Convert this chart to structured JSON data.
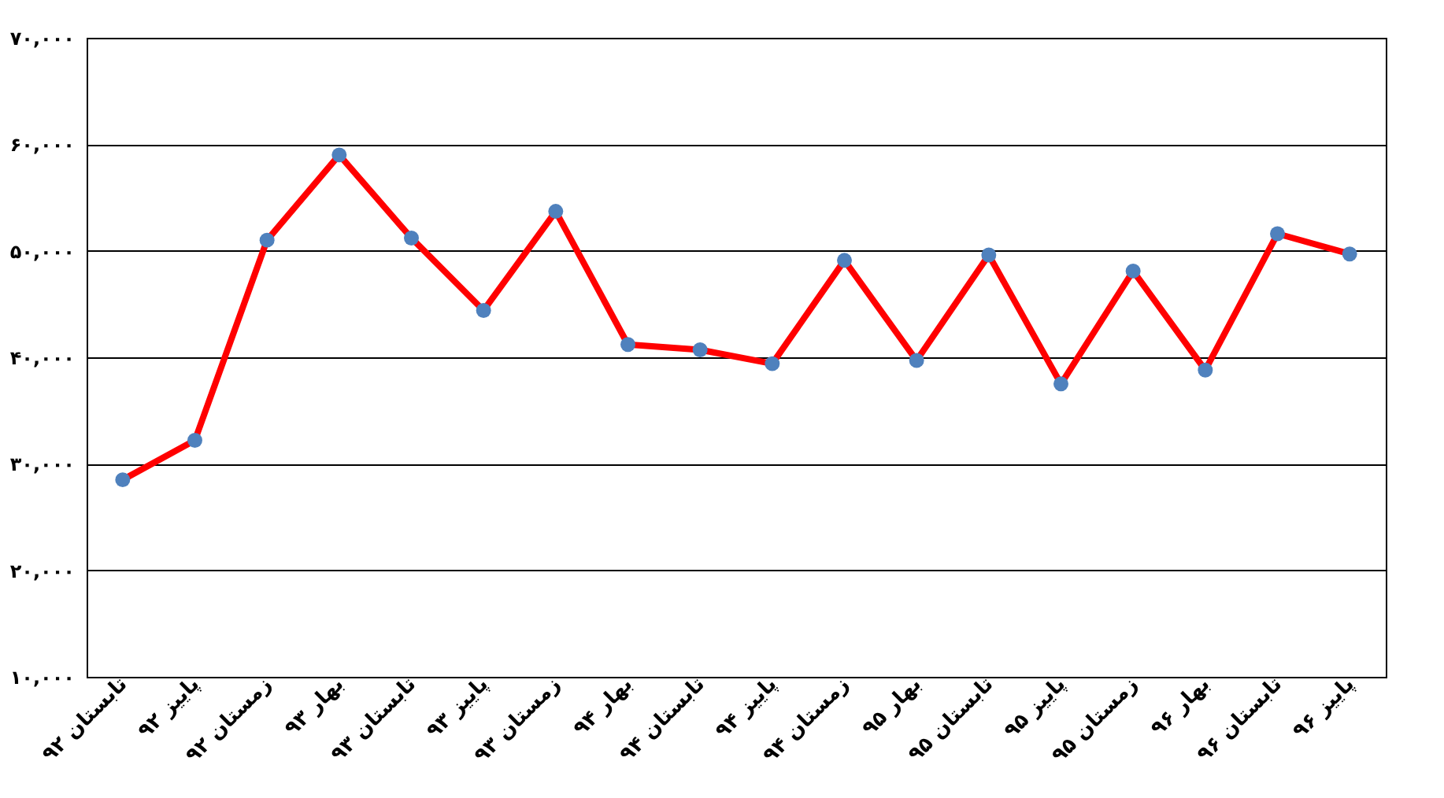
{
  "chart_data": {
    "type": "line",
    "categories": [
      "تابستان ۹۲",
      "پاییز ۹۲",
      "زمستان ۹۲",
      "بهار ۹۳",
      "تابستان ۹۳",
      "پاییز ۹۳",
      "زمستان ۹۳",
      "بهار ۹۴",
      "تابستان ۹۴",
      "پاییز ۹۴",
      "زمستان ۹۴",
      "بهار ۹۵",
      "تابستان ۹۵",
      "پاییز ۹۵",
      "زمستان ۹۵",
      "بهار ۹۶",
      "تابستان ۹۶",
      "پاییز ۹۶"
    ],
    "series": [
      {
        "color": "#ff0000",
        "colors": [
          "#4f81bd",
          "#4f81bd",
          "#4f81bd",
          "#4f81bd",
          "#4f81bd",
          "#4f81bd",
          "#4f81bd",
          "#4f81bd",
          "#4f81bd",
          "#4f81bd",
          "#4f81bd",
          "#4f81bd",
          "#4f81bd",
          "#4f81bd",
          "#4f81bd",
          "#4f81bd",
          "#4f81bd",
          "#4f81bd"
        ],
        "values": [
          28500,
          32200,
          51000,
          59000,
          51200,
          44400,
          53700,
          41200,
          40700,
          39400,
          49100,
          39700,
          49600,
          37500,
          48100,
          38800,
          51600,
          49700
        ]
      }
    ],
    "ylim": [
      10000,
      70000
    ],
    "yticks": [
      {
        "value": 10000,
        "label": "۱۰,۰۰۰"
      },
      {
        "value": 20000,
        "label": "۲۰,۰۰۰"
      },
      {
        "value": 30000,
        "label": "۳۰,۰۰۰"
      },
      {
        "value": 40000,
        "label": "۴۰,۰۰۰"
      },
      {
        "value": 50000,
        "label": "۵۰,۰۰۰"
      },
      {
        "value": 60000,
        "label": "۶۰,۰۰۰"
      },
      {
        "value": 70000,
        "label": "۷۰,۰۰۰"
      }
    ],
    "grid": "y",
    "marker": "circle",
    "line_style": "solid"
  }
}
